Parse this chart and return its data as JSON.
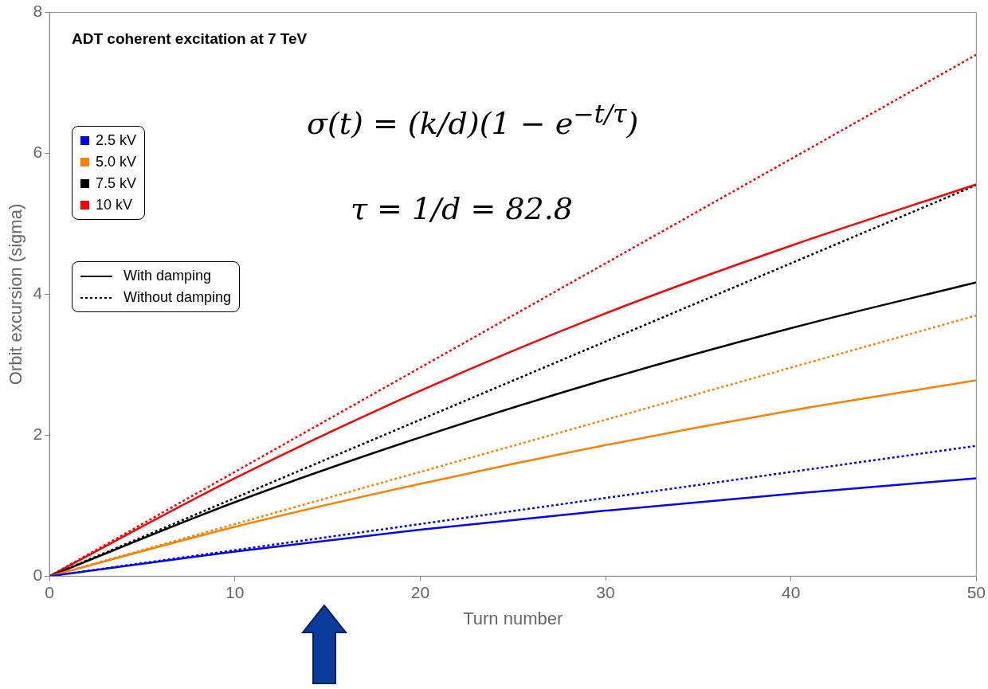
{
  "chart_data": {
    "type": "line",
    "title": "ADT coherent excitation at 7 TeV",
    "xlabel": "Turn number",
    "ylabel": "Orbit excursion (sigma)",
    "x": [
      0,
      10,
      20,
      30,
      40,
      50
    ],
    "series": [
      {
        "name": "2.5 kV",
        "color": "#0000ff",
        "line_style": "solid",
        "values": [
          0,
          0.35,
          0.66,
          0.93,
          1.17,
          1.39
        ]
      },
      {
        "name": "5.0 kV",
        "color": "#ff8000",
        "line_style": "solid",
        "values": [
          0,
          0.7,
          1.31,
          1.86,
          2.35,
          2.78
        ]
      },
      {
        "name": "7.5 kV",
        "color": "#000000",
        "line_style": "solid",
        "values": [
          0,
          1.05,
          1.97,
          2.79,
          3.52,
          4.17
        ]
      },
      {
        "name": "10 kV",
        "color": "#ff0000",
        "line_style": "solid",
        "values": [
          0,
          1.39,
          2.63,
          3.73,
          4.69,
          5.56
        ]
      },
      {
        "color": "#0000ff",
        "line_style": "dotted",
        "values": [
          0,
          0.37,
          0.74,
          1.11,
          1.48,
          1.85
        ]
      },
      {
        "color": "#ff8000",
        "line_style": "dotted",
        "values": [
          0,
          0.74,
          1.48,
          2.22,
          2.96,
          3.7
        ]
      },
      {
        "color": "#000000",
        "line_style": "dotted",
        "values": [
          0,
          1.11,
          2.22,
          3.33,
          4.44,
          5.55
        ]
      },
      {
        "color": "#ff0000",
        "line_style": "dotted",
        "values": [
          0,
          1.48,
          2.96,
          4.44,
          5.92,
          7.4
        ]
      }
    ],
    "xlim": [
      0,
      50
    ],
    "xticks": [
      0,
      10,
      20,
      30,
      40,
      50
    ],
    "ylim": [
      0,
      8
    ],
    "yticks": [
      0,
      2,
      4,
      6,
      8
    ],
    "grid": false,
    "legend": "top left",
    "marker": "none",
    "annotations": [
      "σ(t) = (k/d)(1 − e$^{−t/τ}$)",
      "τ = 1/d = 82.8",
      "With damping",
      "Without damping"
    ]
  }
}
